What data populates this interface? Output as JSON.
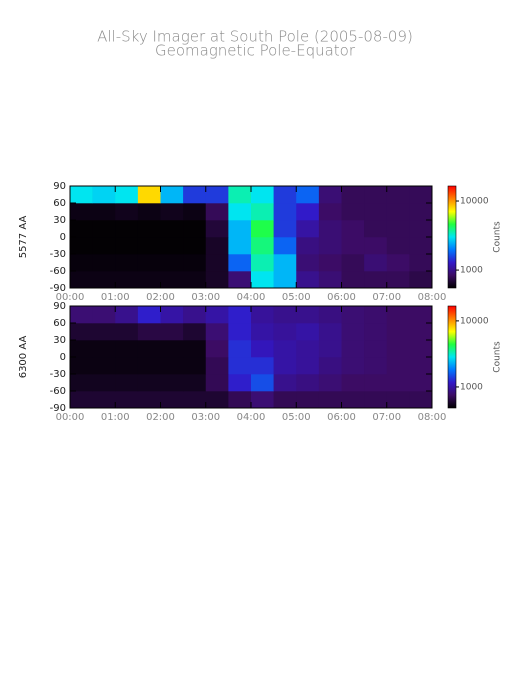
{
  "chart_data": [
    {
      "type": "heatmap",
      "title": "All-Sky Imager at South Pole (2005-08-09)",
      "subtitle": "Geomagnetic Pole-Equator",
      "ylabel": "5577 AA",
      "colorbar_label": "Counts",
      "xlim": [
        0,
        8
      ],
      "xticks": [
        {
          "value": 0,
          "label": "00:00"
        },
        {
          "value": 1,
          "label": "01:00"
        },
        {
          "value": 2,
          "label": "02:00"
        },
        {
          "value": 3,
          "label": "03:00"
        },
        {
          "value": 4,
          "label": "04:00"
        },
        {
          "value": 5,
          "label": "05:00"
        },
        {
          "value": 6,
          "label": "06:00"
        },
        {
          "value": 7,
          "label": "07:00"
        },
        {
          "value": 8,
          "label": "08:00"
        }
      ],
      "ylim": [
        -90,
        90
      ],
      "yticks": [
        90,
        60,
        30,
        0,
        -30,
        -60,
        -90
      ],
      "xbins": [
        0,
        0.5,
        1,
        1.5,
        2,
        2.5,
        3,
        3.5,
        4,
        4.5,
        5,
        5.5,
        6,
        6.5,
        7,
        7.5,
        8
      ],
      "ybins": [
        -90,
        -60,
        -30,
        0,
        30,
        60,
        90
      ],
      "z": [
        [
          600,
          600,
          600,
          600,
          600,
          600,
          650,
          900,
          3000,
          2500,
          1000,
          900,
          800,
          800,
          800,
          750
        ],
        [
          580,
          580,
          580,
          580,
          580,
          580,
          650,
          1800,
          3500,
          2500,
          900,
          850,
          800,
          900,
          850,
          800
        ],
        [
          560,
          560,
          560,
          560,
          560,
          560,
          650,
          2500,
          4000,
          1800,
          950,
          900,
          850,
          850,
          800,
          800
        ],
        [
          560,
          560,
          560,
          560,
          560,
          560,
          700,
          2500,
          4500,
          1500,
          1100,
          900,
          850,
          800,
          800,
          800
        ],
        [
          600,
          600,
          620,
          600,
          620,
          600,
          800,
          3000,
          3500,
          1500,
          1300,
          850,
          800,
          800,
          800,
          800
        ],
        [
          3000,
          2800,
          3000,
          8000,
          2500,
          1500,
          1500,
          3500,
          3000,
          1500,
          1800,
          900,
          800,
          800,
          800,
          800
        ]
      ],
      "zscale": "log",
      "zlim": [
        550,
        16500
      ],
      "zticks": [
        10000,
        1000
      ],
      "colormap": [
        "#000000",
        "#3c0c64",
        "#3218c8",
        "#0078ff",
        "#00e6f0",
        "#20ff40",
        "#ffff00",
        "#ff8000",
        "#ff0000"
      ]
    },
    {
      "type": "heatmap",
      "ylabel": "6300 AA",
      "colorbar_label": "Counts",
      "xlim": [
        0,
        8
      ],
      "xticks": [
        {
          "value": 0,
          "label": "00:00"
        },
        {
          "value": 1,
          "label": "01:00"
        },
        {
          "value": 2,
          "label": "02:00"
        },
        {
          "value": 3,
          "label": "03:00"
        },
        {
          "value": 4,
          "label": "04:00"
        },
        {
          "value": 5,
          "label": "05:00"
        },
        {
          "value": 6,
          "label": "06:00"
        },
        {
          "value": 7,
          "label": "07:00"
        },
        {
          "value": 8,
          "label": "08:00"
        }
      ],
      "ylim": [
        -90,
        90
      ],
      "yticks": [
        90,
        60,
        30,
        0,
        -30,
        -60,
        -90
      ],
      "xbins": [
        0,
        0.5,
        1,
        1.5,
        2,
        2.5,
        3,
        3.5,
        4,
        4.5,
        5,
        5.5,
        6,
        6.5,
        7,
        7.5,
        8
      ],
      "ybins": [
        -90,
        -60,
        -30,
        0,
        30,
        60,
        90
      ],
      "z": [
        [
          600,
          600,
          600,
          600,
          600,
          600,
          600,
          700,
          800,
          700,
          700,
          700,
          700,
          700,
          700,
          700
        ],
        [
          550,
          550,
          550,
          550,
          550,
          550,
          700,
          1200,
          1500,
          900,
          850,
          800,
          750,
          750,
          750,
          750
        ],
        [
          520,
          520,
          520,
          520,
          520,
          520,
          700,
          1300,
          1300,
          1000,
          950,
          850,
          800,
          780,
          750,
          750
        ],
        [
          520,
          520,
          520,
          520,
          520,
          520,
          750,
          1300,
          1100,
          1000,
          950,
          900,
          800,
          780,
          750,
          750
        ],
        [
          600,
          600,
          600,
          650,
          650,
          600,
          800,
          1200,
          1000,
          950,
          1000,
          900,
          800,
          780,
          750,
          750
        ],
        [
          800,
          800,
          900,
          1200,
          1000,
          900,
          1000,
          1200,
          950,
          900,
          900,
          850,
          800,
          780,
          750,
          750
        ]
      ],
      "zscale": "log",
      "zlim": [
        480,
        16800
      ],
      "zticks": [
        10000,
        1000
      ],
      "colormap": [
        "#000000",
        "#3c0c64",
        "#3218c8",
        "#0078ff",
        "#00e6f0",
        "#20ff40",
        "#ffff00",
        "#ff8000",
        "#ff0000"
      ]
    }
  ]
}
